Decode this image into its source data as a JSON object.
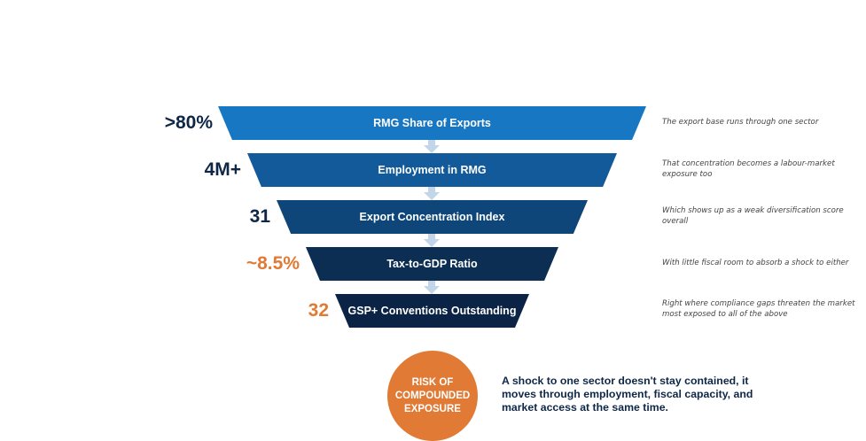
{
  "funnel": {
    "layers": [
      {
        "label": "RMG Share of Exports",
        "metric": ">80%",
        "note": "The export base runs through one sector"
      },
      {
        "label": "Employment in RMG",
        "metric": "4M+",
        "note": "That concentration becomes a labour-market exposure too"
      },
      {
        "label": "Export Concentration Index",
        "metric": "31",
        "note": "Which shows up as a weak diversification score overall"
      },
      {
        "label": "Tax-to-GDP Ratio",
        "metric": "~8.5%",
        "note": "With little fiscal room to absorb a shock to either"
      },
      {
        "label": "GSP+ Conventions Outstanding",
        "metric": "32",
        "note": "Right where compliance gaps threaten the market most exposed to all of the above"
      }
    ],
    "colors": {
      "band_1": "#1877c2",
      "band_2": "#125a99",
      "band_3": "#0e4679",
      "band_4": "#0c2e53",
      "band_5": "#0b2345",
      "metric_dark": "#0f2747",
      "metric_orange": "#e07a34",
      "arrow": "#c3d5e8"
    }
  },
  "conclusion": {
    "circle_text": "RISK OF COMPOUNDED EXPOSURE",
    "circle_color": "#e07a34",
    "text": "A shock to one sector doesn't stay contained, it moves through employment, fiscal capacity, and market access at the same time."
  }
}
